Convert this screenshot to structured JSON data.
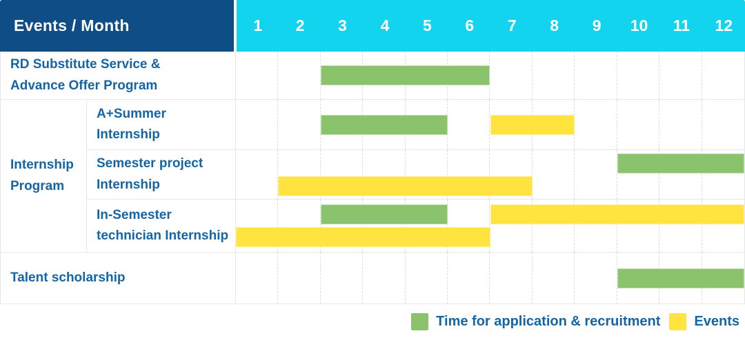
{
  "chart_data": {
    "type": "table",
    "subtype": "gantt-schedule",
    "title": "Events / Month",
    "x": {
      "label": "Month",
      "ticks": [
        "1",
        "2",
        "3",
        "4",
        "5",
        "6",
        "7",
        "8",
        "9",
        "10",
        "11",
        "12"
      ],
      "range": [
        1,
        12
      ]
    },
    "colors": {
      "application": "#8ac36b",
      "event": "#ffe33e"
    },
    "header_bg": "#0e4d85",
    "months_bg": "#12d4ee",
    "group_label_lines": [
      "Internship",
      "Program"
    ],
    "rows": [
      {
        "label_lines": [
          "RD Substitute Service &",
          "Advance Offer Program"
        ],
        "group": "",
        "bars": [
          {
            "kind": "application",
            "start": 3,
            "end": 6,
            "line": "single"
          }
        ]
      },
      {
        "label_lines": [
          "A+Summer",
          "Internship"
        ],
        "group": "Internship Program",
        "bars": [
          {
            "kind": "application",
            "start": 3,
            "end": 5,
            "line": "single"
          },
          {
            "kind": "event",
            "start": 7,
            "end": 8,
            "line": "single"
          }
        ]
      },
      {
        "label_lines": [
          "Semester project",
          "Internship"
        ],
        "group": "Internship Program",
        "bars": [
          {
            "kind": "application",
            "start": 10,
            "end": 12,
            "line": "upper"
          },
          {
            "kind": "event",
            "start": 2,
            "end": 7,
            "line": "lower"
          }
        ]
      },
      {
        "label_lines": [
          "In-Semester",
          "technician Internship"
        ],
        "group": "Internship Program",
        "bars": [
          {
            "kind": "application",
            "start": 3,
            "end": 5,
            "line": "upper"
          },
          {
            "kind": "event",
            "start": 7,
            "end": 12,
            "line": "upper"
          },
          {
            "kind": "event",
            "start": 1,
            "end": 6,
            "line": "lower"
          }
        ]
      },
      {
        "label_lines": [
          "Talent scholarship"
        ],
        "group": "",
        "bars": [
          {
            "kind": "application",
            "start": 10,
            "end": 12,
            "line": "single"
          }
        ]
      }
    ],
    "legend": [
      {
        "kind": "application",
        "label": "Time for application & recruitment",
        "color": "#8ac36b"
      },
      {
        "kind": "event",
        "label": "Events",
        "color": "#ffe33e"
      }
    ]
  }
}
